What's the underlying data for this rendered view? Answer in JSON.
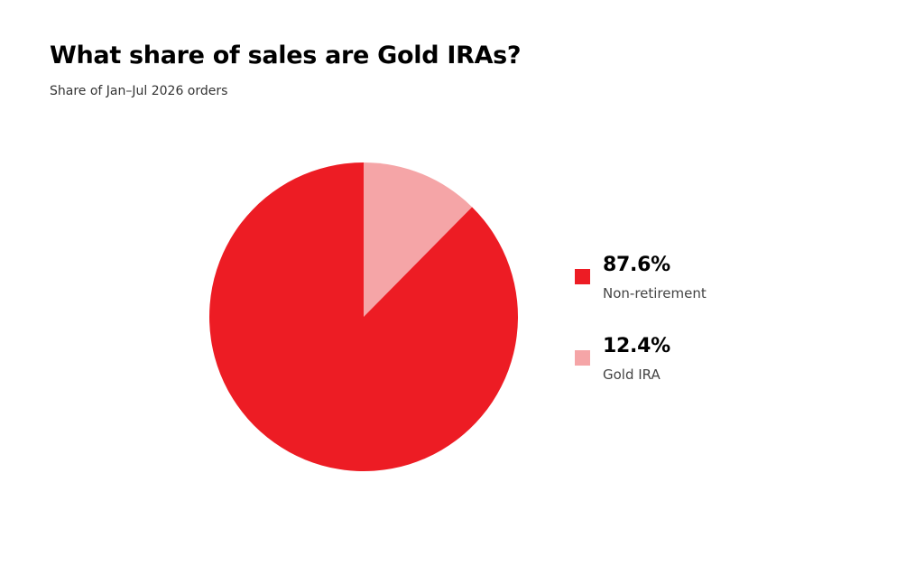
{
  "chart_data": {
    "type": "pie",
    "title": "What share of sales are Gold IRAs?",
    "subtitle": "Share of Jan–Jul 2026 orders",
    "slices": [
      {
        "label": "Gold IRA",
        "value": 12.4,
        "value_label": "12.4%",
        "color": "#f5a5a7"
      },
      {
        "label": "Non-retirement",
        "value": 87.6,
        "value_label": "87.6%",
        "color": "#ed1c24"
      }
    ],
    "start_angle": "12 o'clock",
    "direction": "clockwise",
    "legend": {
      "placement": "right",
      "items": [
        {
          "value_label": "87.6%",
          "label": "Non-retirement",
          "color": "#ed1c24"
        },
        {
          "value_label": "12.4%",
          "label": "Gold IRA",
          "color": "#f5a5a7"
        }
      ]
    }
  }
}
